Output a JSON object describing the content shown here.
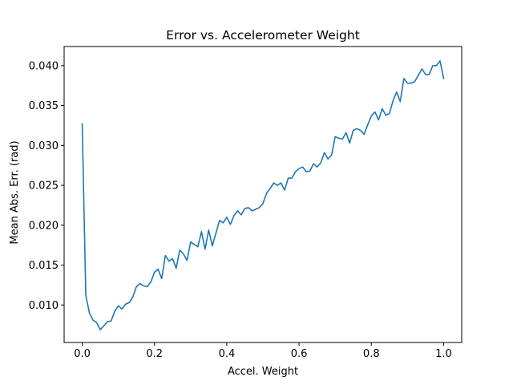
{
  "chart_data": {
    "type": "line",
    "title": "Error vs. Accelerometer Weight",
    "xlabel": "Accel. Weight",
    "ylabel": "Mean Abs. Err. (rad)",
    "xlim": [
      -0.05,
      1.05
    ],
    "ylim": [
      0.0053,
      0.0424
    ],
    "xticks": [
      0.0,
      0.2,
      0.4,
      0.6,
      0.8,
      1.0
    ],
    "xtick_labels": [
      "0.0",
      "0.2",
      "0.4",
      "0.6",
      "0.8",
      "1.0"
    ],
    "yticks": [
      0.01,
      0.015,
      0.02,
      0.025,
      0.03,
      0.035,
      0.04
    ],
    "ytick_labels": [
      "0.010",
      "0.015",
      "0.020",
      "0.025",
      "0.030",
      "0.035",
      "0.040"
    ],
    "grid": false,
    "legend": "none",
    "series": [
      {
        "color": "#1f77b4",
        "x": [
          0.0,
          0.01,
          0.02,
          0.03,
          0.04,
          0.05,
          0.06,
          0.07,
          0.08,
          0.09,
          0.1,
          0.11,
          0.12,
          0.13,
          0.14,
          0.15,
          0.16,
          0.17,
          0.18,
          0.19,
          0.2,
          0.21,
          0.22,
          0.23,
          0.24,
          0.25,
          0.26,
          0.27,
          0.28,
          0.29,
          0.3,
          0.31,
          0.32,
          0.33,
          0.34,
          0.35,
          0.36,
          0.37,
          0.38,
          0.39,
          0.4,
          0.41,
          0.42,
          0.43,
          0.44,
          0.45,
          0.46,
          0.47,
          0.48,
          0.49,
          0.5,
          0.51,
          0.52,
          0.53,
          0.54,
          0.55,
          0.56,
          0.57,
          0.58,
          0.59,
          0.6,
          0.61,
          0.62,
          0.63,
          0.64,
          0.65,
          0.66,
          0.67,
          0.68,
          0.69,
          0.7,
          0.71,
          0.72,
          0.73,
          0.74,
          0.75,
          0.76,
          0.77,
          0.78,
          0.79,
          0.8,
          0.81,
          0.82,
          0.83,
          0.84,
          0.85,
          0.86,
          0.87,
          0.88,
          0.89,
          0.9,
          0.91,
          0.92,
          0.93,
          0.94,
          0.95,
          0.96,
          0.97,
          0.98,
          0.99,
          1.0
        ],
        "y": [
          0.0327,
          0.0112,
          0.009,
          0.0081,
          0.0078,
          0.0069,
          0.0074,
          0.0079,
          0.008,
          0.0092,
          0.0099,
          0.0095,
          0.0101,
          0.0103,
          0.011,
          0.0123,
          0.0127,
          0.0124,
          0.0123,
          0.0129,
          0.0141,
          0.0145,
          0.0133,
          0.0162,
          0.0155,
          0.0158,
          0.0146,
          0.0169,
          0.0164,
          0.0156,
          0.0179,
          0.0176,
          0.0173,
          0.0192,
          0.017,
          0.0194,
          0.0174,
          0.019,
          0.0206,
          0.0203,
          0.021,
          0.0201,
          0.0212,
          0.0218,
          0.0213,
          0.0221,
          0.0222,
          0.0218,
          0.022,
          0.0222,
          0.0227,
          0.024,
          0.0246,
          0.0253,
          0.025,
          0.0253,
          0.0244,
          0.0259,
          0.0259,
          0.0267,
          0.0271,
          0.0273,
          0.0267,
          0.0268,
          0.0277,
          0.0273,
          0.0278,
          0.0291,
          0.0283,
          0.0288,
          0.0311,
          0.0309,
          0.0308,
          0.0316,
          0.0303,
          0.0319,
          0.0321,
          0.0319,
          0.0314,
          0.0326,
          0.0337,
          0.0342,
          0.0332,
          0.0346,
          0.0338,
          0.034,
          0.0356,
          0.0367,
          0.0355,
          0.0384,
          0.0378,
          0.0378,
          0.038,
          0.0388,
          0.0396,
          0.0389,
          0.0389,
          0.04,
          0.04,
          0.0406,
          0.0384
        ]
      }
    ]
  }
}
